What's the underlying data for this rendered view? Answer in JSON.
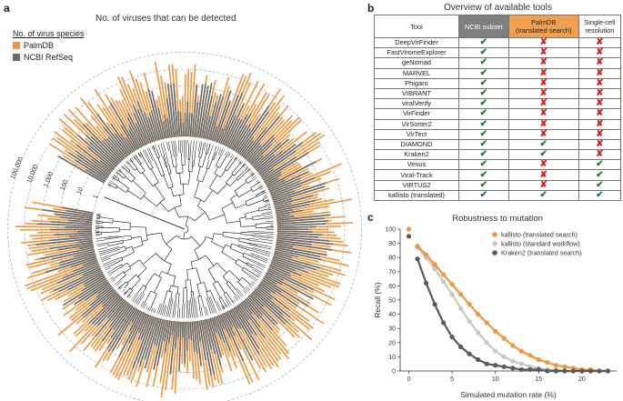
{
  "panel_a": {
    "label": "a",
    "title": "No. of viruses that can be detected",
    "legend_title": "No. of virus species",
    "ring_ticks": [
      "100,000",
      "10,000",
      "1,000",
      "100",
      "10",
      "1"
    ]
  },
  "panel_b": {
    "label": "b",
    "title": "Overview of available tools",
    "header": [
      "Tool",
      "NCBI subset",
      "PalmDB\n(translated search)",
      "Single-cell\nresolution"
    ],
    "rows": [
      {
        "tool": "DeepVirFinder",
        "marks": [
          "yes",
          "no",
          "no"
        ]
      },
      {
        "tool": "FastViromeExplorer",
        "marks": [
          "yes",
          "no",
          "no"
        ]
      },
      {
        "tool": "geNomad",
        "marks": [
          "yes",
          "no",
          "no"
        ]
      },
      {
        "tool": "MARVEL",
        "marks": [
          "yes",
          "no",
          "no"
        ]
      },
      {
        "tool": "Phigaro",
        "marks": [
          "yes",
          "no",
          "no"
        ]
      },
      {
        "tool": "VIBRANT",
        "marks": [
          "yes",
          "no",
          "no"
        ]
      },
      {
        "tool": "viralVerify",
        "marks": [
          "yes",
          "no",
          "no"
        ]
      },
      {
        "tool": "VirFinder",
        "marks": [
          "yes",
          "no",
          "no"
        ]
      },
      {
        "tool": "VirSorter2",
        "marks": [
          "yes",
          "no",
          "no"
        ]
      },
      {
        "tool": "VirTect",
        "marks": [
          "yes",
          "no",
          "no"
        ]
      },
      {
        "tool": "DIAMOND",
        "marks": [
          "yes",
          "yes",
          "no"
        ]
      },
      {
        "tool": "Kraken2",
        "marks": [
          "yes",
          "yes",
          "no"
        ]
      },
      {
        "tool": "Venus",
        "marks": [
          "yes",
          "no",
          "yes"
        ]
      },
      {
        "tool": "Viral-Track",
        "marks": [
          "yes",
          "no",
          "yes"
        ]
      },
      {
        "tool": "VIRTUS2",
        "marks": [
          "yes",
          "no",
          "yes"
        ]
      },
      {
        "tool": "kallisto (translated)",
        "marks": [
          "yes",
          "yes",
          "yes"
        ]
      }
    ],
    "check_glyph": "✔",
    "cross_glyph": "✘",
    "colors": {
      "ncbi_header": "#7f7f7f",
      "palmdb_header": "#f0a050",
      "check": "#1f7a3a",
      "cross": "#d62020"
    }
  },
  "panel_c": {
    "label": "c"
  },
  "chart_data": [
    {
      "type": "bar",
      "subtype": "circular-log-bars",
      "title": "No. of viruses that can be detected",
      "legend_title": "No. of virus species",
      "series": [
        {
          "name": "PalmDB",
          "color": "#f0963c"
        },
        {
          "name": "NCBI RefSeq",
          "color": "#6b6b6b"
        }
      ],
      "scale": "log10",
      "ylim": [
        1,
        100000
      ],
      "yticks": [
        1,
        10,
        100,
        1000,
        10000,
        100000
      ]
    },
    {
      "type": "line",
      "title": "Robustness to mutation",
      "xlabel": "Simulated mutation rate (%)",
      "ylabel": "Recall (%)",
      "xlim": [
        -1,
        24
      ],
      "ylim": [
        0,
        100
      ],
      "xticks": [
        0,
        5,
        10,
        15,
        20
      ],
      "yticks": [
        0,
        10,
        20,
        30,
        40,
        50,
        60,
        70,
        80,
        90,
        100
      ],
      "x": [
        0,
        1,
        2,
        3,
        4,
        5,
        6,
        7,
        8,
        9,
        10,
        11,
        12,
        13,
        14,
        15,
        16,
        17,
        18,
        19,
        20,
        21,
        22,
        23
      ],
      "series": [
        {
          "name": "kallisto (translated search)",
          "color": "#f0963c",
          "values": [
            100,
            88,
            82,
            75,
            68,
            61,
            54,
            47,
            40,
            34,
            28,
            23,
            18,
            14,
            11,
            8,
            6,
            4,
            3,
            2,
            1,
            1,
            0,
            0
          ]
        },
        {
          "name": "kallisto (standard workflow)",
          "color": "#c8c8c8",
          "values": [
            100,
            87,
            80,
            72,
            63,
            54,
            44,
            35,
            27,
            20,
            14,
            10,
            7,
            5,
            3,
            2,
            1,
            1,
            0,
            0,
            0,
            0,
            0,
            0
          ]
        },
        {
          "name": "Kraken2 (translated search)",
          "color": "#5a5a5a",
          "values": [
            95,
            79,
            62,
            47,
            34,
            24,
            17,
            12,
            8,
            5,
            4,
            3,
            2,
            1,
            1,
            1,
            0,
            0,
            0,
            0,
            0,
            0,
            0,
            0
          ]
        }
      ]
    }
  ]
}
